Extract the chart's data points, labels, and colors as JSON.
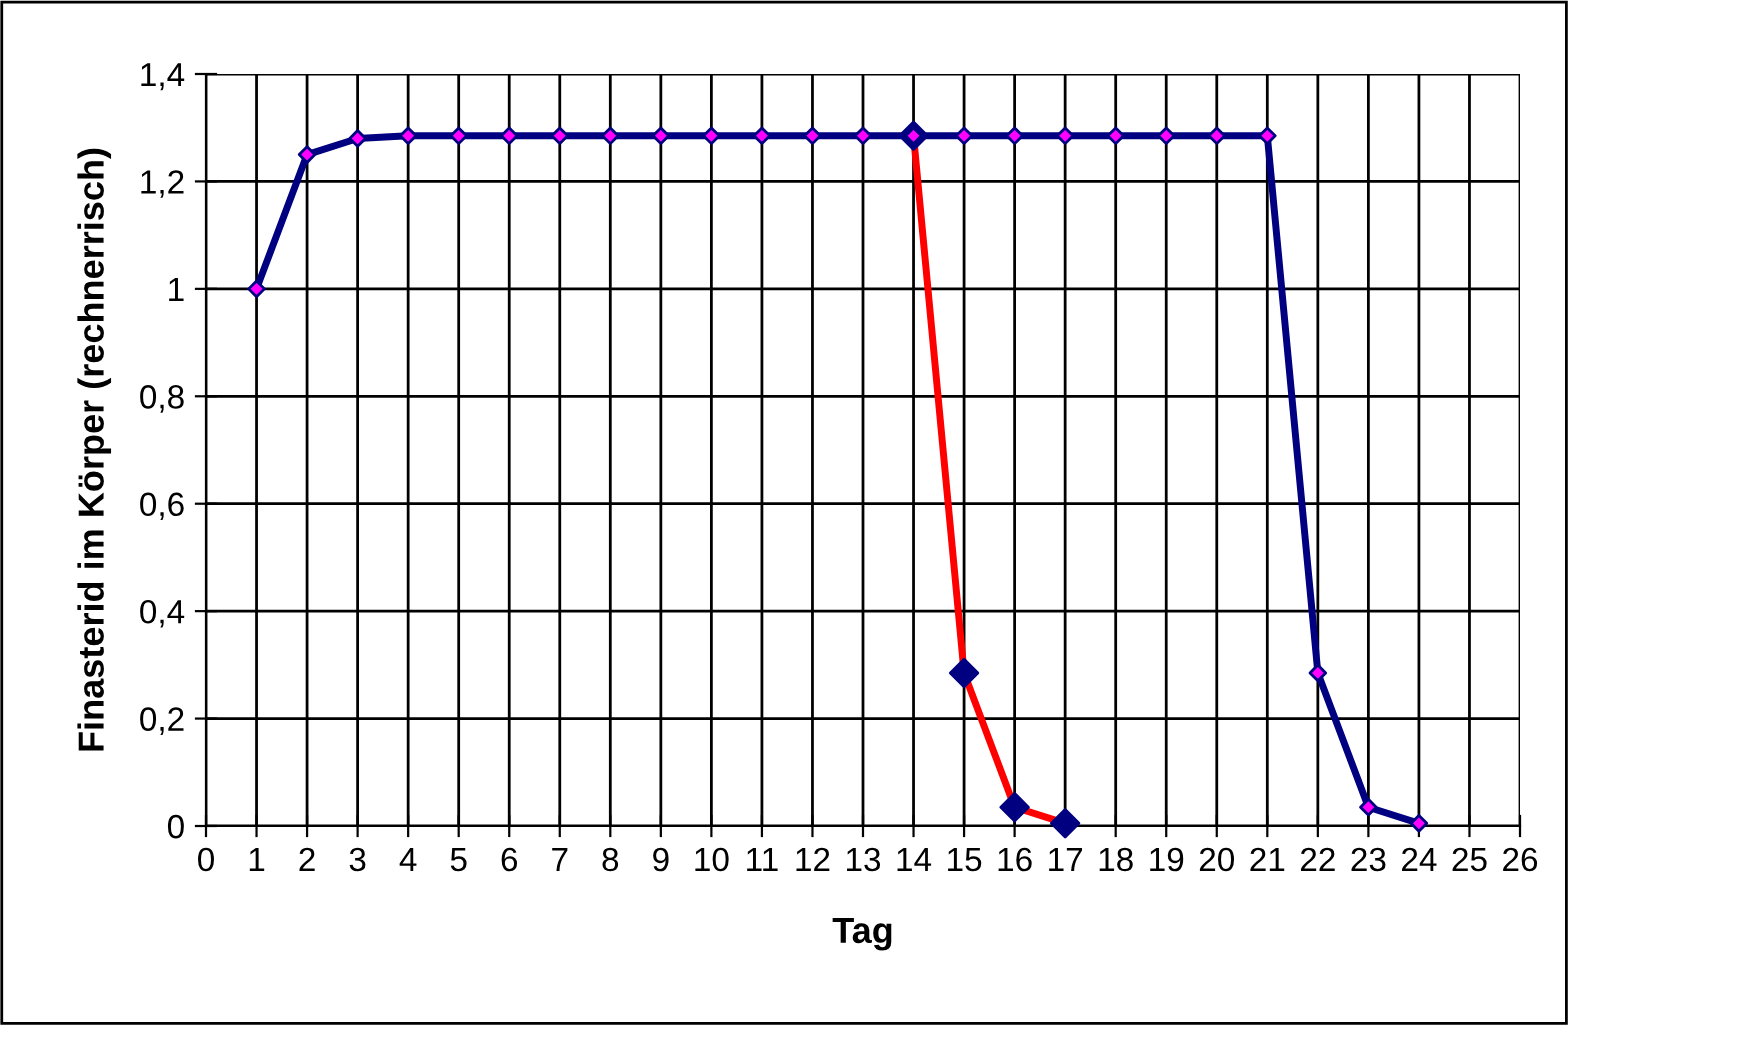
{
  "chart_data": {
    "type": "line",
    "xlabel": "Tag",
    "ylabel": "Finasterid im Körper (rechnerrisch)",
    "xlim": [
      0,
      26
    ],
    "xticks": [
      0,
      1,
      2,
      3,
      4,
      5,
      6,
      7,
      8,
      9,
      10,
      11,
      12,
      13,
      14,
      15,
      16,
      17,
      18,
      19,
      20,
      21,
      22,
      23,
      24,
      25,
      26
    ],
    "ylim": [
      0,
      1.4
    ],
    "yticks": [
      0,
      {
        "value": 0.2,
        "label": "0,2"
      },
      {
        "value": 0.4,
        "label": "0,4"
      },
      {
        "value": 0.6,
        "label": "0,6"
      },
      {
        "value": 0.8,
        "label": "0,8"
      },
      1,
      {
        "value": 1.2,
        "label": "1,2"
      },
      {
        "value": 1.4,
        "label": "1,4"
      }
    ],
    "grid": true,
    "marker": "diamond",
    "line_style": "solid",
    "series": [
      {
        "color": "#ff0000",
        "colors": [
          "#000080",
          "#000080",
          "#000080",
          "#000080"
        ],
        "x": [
          14,
          15,
          16,
          17
        ],
        "values": [
          1.285,
          0.285,
          0.035,
          0.005
        ]
      },
      {
        "color": "#000080",
        "colors": [
          "#ff00ff",
          "#ff00ff",
          "#ff00ff",
          "#ff00ff",
          "#ff00ff",
          "#ff00ff",
          "#ff00ff",
          "#ff00ff",
          "#ff00ff",
          "#ff00ff",
          "#ff00ff",
          "#ff00ff",
          "#ff00ff",
          "#ff00ff",
          "#ff00ff",
          "#ff00ff",
          "#ff00ff",
          "#ff00ff",
          "#ff00ff",
          "#ff00ff",
          "#ff00ff",
          "#ff00ff",
          "#ff00ff",
          "#ff00ff"
        ],
        "x": [
          1,
          2,
          3,
          4,
          5,
          6,
          7,
          8,
          9,
          10,
          11,
          12,
          13,
          14,
          15,
          16,
          17,
          18,
          19,
          20,
          21,
          22,
          23,
          24
        ],
        "values": [
          1.0,
          1.25,
          1.28,
          1.285,
          1.285,
          1.285,
          1.285,
          1.285,
          1.285,
          1.285,
          1.285,
          1.285,
          1.285,
          1.285,
          1.285,
          1.285,
          1.285,
          1.285,
          1.285,
          1.285,
          1.285,
          0.285,
          0.035,
          0.005
        ]
      }
    ]
  }
}
